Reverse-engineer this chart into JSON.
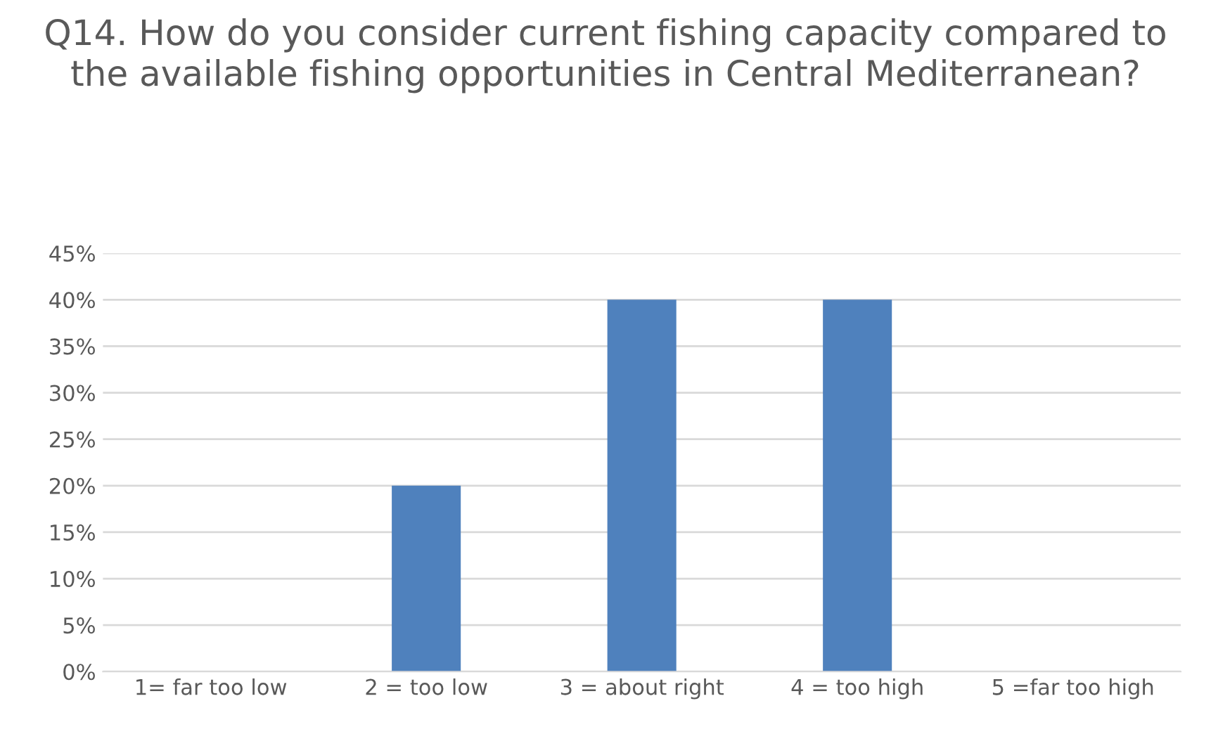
{
  "chart_data": {
    "type": "bar",
    "title": "Q14. How do you consider current fishing capacity compared to the available fishing opportunities in Central Mediterranean?",
    "categories": [
      "1= far too low",
      "2 = too low",
      "3 = about right",
      "4 = too high",
      "5 =far too high"
    ],
    "values": [
      0,
      20,
      40,
      40,
      0
    ],
    "color": "#4f81bd",
    "ylim": [
      0,
      45
    ],
    "yticks": [
      {
        "value": 0,
        "label": "0%"
      },
      {
        "value": 5,
        "label": "5%"
      },
      {
        "value": 10,
        "label": "10%"
      },
      {
        "value": 15,
        "label": "15%"
      },
      {
        "value": 20,
        "label": "20%"
      },
      {
        "value": 25,
        "label": "25%"
      },
      {
        "value": 30,
        "label": "30%"
      },
      {
        "value": 35,
        "label": "35%"
      },
      {
        "value": 40,
        "label": "40%"
      },
      {
        "value": 45,
        "label": "45%"
      }
    ],
    "grid": "y"
  }
}
